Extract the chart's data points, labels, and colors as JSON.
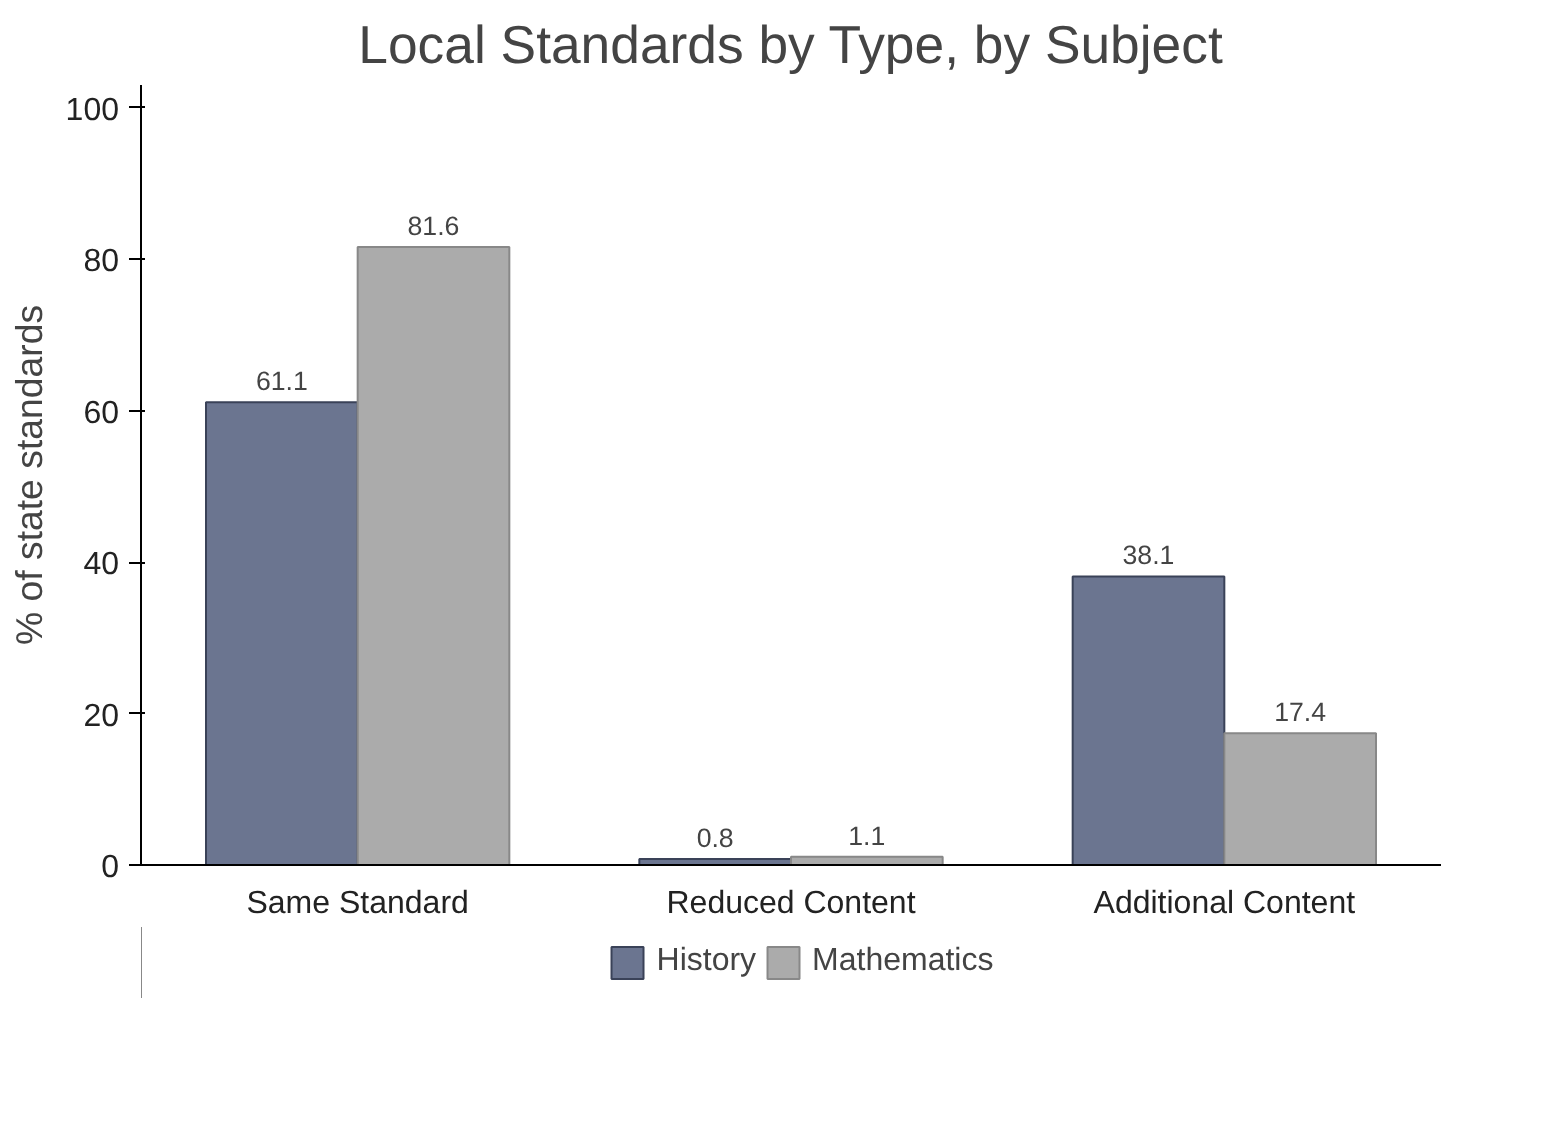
{
  "chart_data": {
    "type": "bar",
    "title": "Local Standards by Type, by Subject",
    "ylabel": "% of state standards",
    "categories": [
      "Same Standard",
      "Reduced Content",
      "Additional Content"
    ],
    "series": [
      {
        "name": "History",
        "color": "#6b7590",
        "values": [
          61.1,
          0.8,
          38.1
        ]
      },
      {
        "name": "Mathematics",
        "color": "#ababab",
        "values": [
          81.6,
          1.1,
          17.4
        ]
      }
    ],
    "ylim": [
      0,
      103
    ],
    "yticks": [
      0,
      20,
      40,
      60,
      80,
      100
    ],
    "grid": false,
    "legend": "bottom",
    "data_labels": true
  }
}
